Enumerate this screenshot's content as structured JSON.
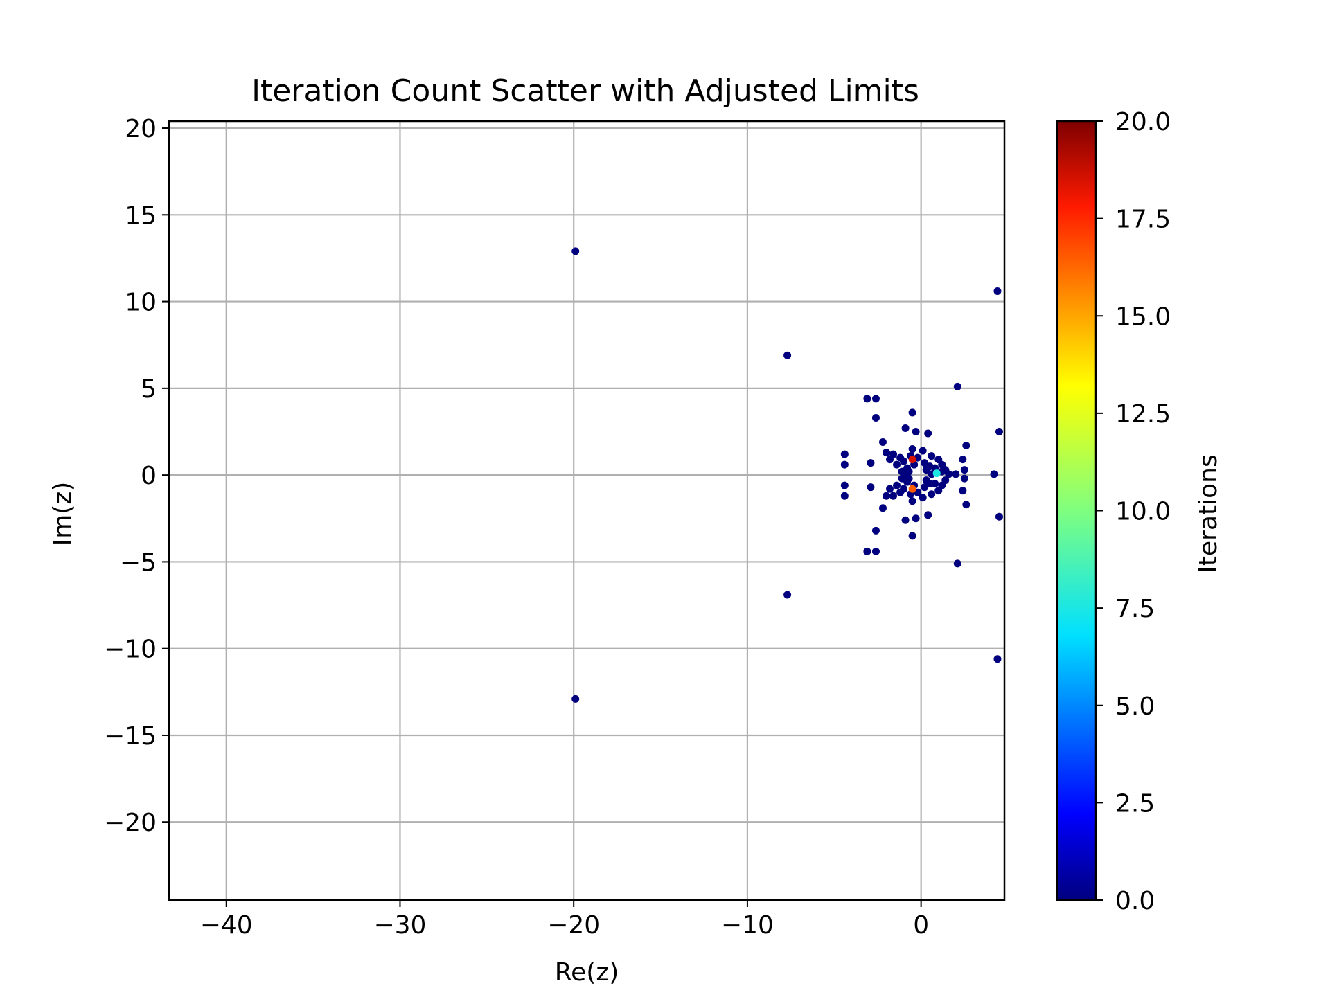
{
  "chart_data": {
    "type": "scatter",
    "title": "Iteration Count Scatter with Adjusted Limits",
    "xlabel": "Re(z)",
    "ylabel": "Im(z)",
    "xlim": [
      -43.3,
      4.8
    ],
    "ylim": [
      -24.5,
      20.4
    ],
    "xticks": [
      -40,
      -30,
      -20,
      -10,
      0
    ],
    "xtick_labels": [
      "−40",
      "−30",
      "−20",
      "−10",
      "0"
    ],
    "yticks": [
      20,
      15,
      10,
      5,
      0,
      -5,
      -10,
      -15,
      -20
    ],
    "ytick_labels": [
      "20",
      "15",
      "10",
      "5",
      "0",
      "−5",
      "−10",
      "−15",
      "−20"
    ],
    "grid": true,
    "colorbar": {
      "label": "Iterations",
      "colormap": "jet",
      "range": [
        0.0,
        20.0
      ],
      "ticks": [
        0.0,
        2.5,
        5.0,
        7.5,
        10.0,
        12.5,
        15.0,
        17.5,
        20.0
      ],
      "tick_labels": [
        "0.0",
        "2.5",
        "5.0",
        "7.5",
        "10.0",
        "12.5",
        "15.0",
        "17.5",
        "20.0"
      ]
    },
    "points": [
      {
        "x": -19.9,
        "y": 12.9,
        "c": 0
      },
      {
        "x": -19.9,
        "y": -12.9,
        "c": 0
      },
      {
        "x": -7.7,
        "y": 6.9,
        "c": 0
      },
      {
        "x": -7.7,
        "y": -6.9,
        "c": 0
      },
      {
        "x": 4.4,
        "y": 10.6,
        "c": 0
      },
      {
        "x": 4.4,
        "y": -10.6,
        "c": 0
      },
      {
        "x": 2.1,
        "y": 5.1,
        "c": 0
      },
      {
        "x": 2.1,
        "y": -5.1,
        "c": 0
      },
      {
        "x": 4.5,
        "y": 2.5,
        "c": 0
      },
      {
        "x": 4.5,
        "y": -2.4,
        "c": 0
      },
      {
        "x": 4.2,
        "y": 0.05,
        "c": 0
      },
      {
        "x": -3.1,
        "y": 4.4,
        "c": 0
      },
      {
        "x": -2.6,
        "y": 4.4,
        "c": 0
      },
      {
        "x": -3.1,
        "y": -4.4,
        "c": 0
      },
      {
        "x": -2.6,
        "y": -4.4,
        "c": 0
      },
      {
        "x": -0.5,
        "y": 3.6,
        "c": 0
      },
      {
        "x": -0.5,
        "y": -3.5,
        "c": 0
      },
      {
        "x": -2.6,
        "y": 3.3,
        "c": 0
      },
      {
        "x": -2.6,
        "y": -3.2,
        "c": 0
      },
      {
        "x": -0.9,
        "y": 2.7,
        "c": 0
      },
      {
        "x": -0.9,
        "y": -2.6,
        "c": 0
      },
      {
        "x": -0.3,
        "y": 2.5,
        "c": 0
      },
      {
        "x": -0.3,
        "y": -2.5,
        "c": 0
      },
      {
        "x": 0.4,
        "y": 2.4,
        "c": 0
      },
      {
        "x": 0.4,
        "y": -2.3,
        "c": 0
      },
      {
        "x": -2.2,
        "y": 1.9,
        "c": 0
      },
      {
        "x": -2.2,
        "y": -1.9,
        "c": 0
      },
      {
        "x": 2.6,
        "y": 1.7,
        "c": 0
      },
      {
        "x": 2.6,
        "y": -1.7,
        "c": 0
      },
      {
        "x": -4.4,
        "y": 1.2,
        "c": 0
      },
      {
        "x": -4.4,
        "y": 0.6,
        "c": 0
      },
      {
        "x": -4.4,
        "y": -0.6,
        "c": 0
      },
      {
        "x": -4.4,
        "y": -1.2,
        "c": 0
      },
      {
        "x": -2.9,
        "y": 0.7,
        "c": 0
      },
      {
        "x": -2.9,
        "y": -0.7,
        "c": 0
      },
      {
        "x": -2.0,
        "y": 1.3,
        "c": 0
      },
      {
        "x": -2.0,
        "y": -1.2,
        "c": 0
      },
      {
        "x": -1.6,
        "y": 1.2,
        "c": 0
      },
      {
        "x": -1.6,
        "y": -1.2,
        "c": 0
      },
      {
        "x": -1.8,
        "y": 0.9,
        "c": 0
      },
      {
        "x": -1.8,
        "y": -0.8,
        "c": 0
      },
      {
        "x": -1.4,
        "y": 0.6,
        "c": 0
      },
      {
        "x": -1.4,
        "y": -0.6,
        "c": 0
      },
      {
        "x": -1.2,
        "y": 1.0,
        "c": 0
      },
      {
        "x": -1.2,
        "y": -1.0,
        "c": 0
      },
      {
        "x": -1.0,
        "y": 0.8,
        "c": 0
      },
      {
        "x": -1.0,
        "y": -0.8,
        "c": 0
      },
      {
        "x": -0.8,
        "y": 0.4,
        "c": 0
      },
      {
        "x": -0.8,
        "y": -0.4,
        "c": 0
      },
      {
        "x": -0.6,
        "y": 1.1,
        "c": 0
      },
      {
        "x": -0.6,
        "y": -1.1,
        "c": 0
      },
      {
        "x": -0.5,
        "y": 1.5,
        "c": 0
      },
      {
        "x": -0.5,
        "y": -1.5,
        "c": 0
      },
      {
        "x": -0.4,
        "y": 0.6,
        "c": 0
      },
      {
        "x": -0.4,
        "y": -0.6,
        "c": 0
      },
      {
        "x": -0.2,
        "y": 1.0,
        "c": 0
      },
      {
        "x": -0.2,
        "y": -1.0,
        "c": 0
      },
      {
        "x": 0.1,
        "y": 1.4,
        "c": 0
      },
      {
        "x": 0.1,
        "y": -1.3,
        "c": 0
      },
      {
        "x": 0.2,
        "y": 0.7,
        "c": 0
      },
      {
        "x": 0.2,
        "y": -0.7,
        "c": 0
      },
      {
        "x": 0.5,
        "y": 0.5,
        "c": 0
      },
      {
        "x": 0.5,
        "y": -0.5,
        "c": 0
      },
      {
        "x": 0.6,
        "y": 1.1,
        "c": 0
      },
      {
        "x": 0.6,
        "y": -1.1,
        "c": 0
      },
      {
        "x": 0.8,
        "y": 0.4,
        "c": 0
      },
      {
        "x": 0.8,
        "y": -0.5,
        "c": 0
      },
      {
        "x": 1.0,
        "y": 0.9,
        "c": 0
      },
      {
        "x": 1.0,
        "y": -0.9,
        "c": 0
      },
      {
        "x": 1.2,
        "y": 0.6,
        "c": 0
      },
      {
        "x": 1.2,
        "y": -0.6,
        "c": 0
      },
      {
        "x": 1.4,
        "y": 0.3,
        "c": 0
      },
      {
        "x": 1.4,
        "y": -0.3,
        "c": 0
      },
      {
        "x": 1.6,
        "y": 0.05,
        "c": 0
      },
      {
        "x": 2.0,
        "y": 0.05,
        "c": 0
      },
      {
        "x": 2.4,
        "y": 0.9,
        "c": 0
      },
      {
        "x": 2.4,
        "y": -0.9,
        "c": 0
      },
      {
        "x": 2.5,
        "y": 0.3,
        "c": 0
      },
      {
        "x": 2.5,
        "y": -0.2,
        "c": 0
      },
      {
        "x": -1.1,
        "y": 0.2,
        "c": 0
      },
      {
        "x": -1.1,
        "y": -0.2,
        "c": 0
      },
      {
        "x": -0.9,
        "y": 0.05,
        "c": 0
      },
      {
        "x": -0.7,
        "y": 0.2,
        "c": 0
      },
      {
        "x": -0.7,
        "y": -0.2,
        "c": 0
      },
      {
        "x": 0.3,
        "y": 0.3,
        "c": 0
      },
      {
        "x": 0.3,
        "y": -0.3,
        "c": 0
      },
      {
        "x": 0.6,
        "y": 0.05,
        "c": 0
      },
      {
        "x": 1.2,
        "y": 0.2,
        "c": 0
      },
      {
        "x": -0.5,
        "y": 0.9,
        "c": 18.5
      },
      {
        "x": -0.5,
        "y": -0.8,
        "c": 16.5
      },
      {
        "x": 0.9,
        "y": 0.1,
        "c": 7.5
      }
    ]
  }
}
